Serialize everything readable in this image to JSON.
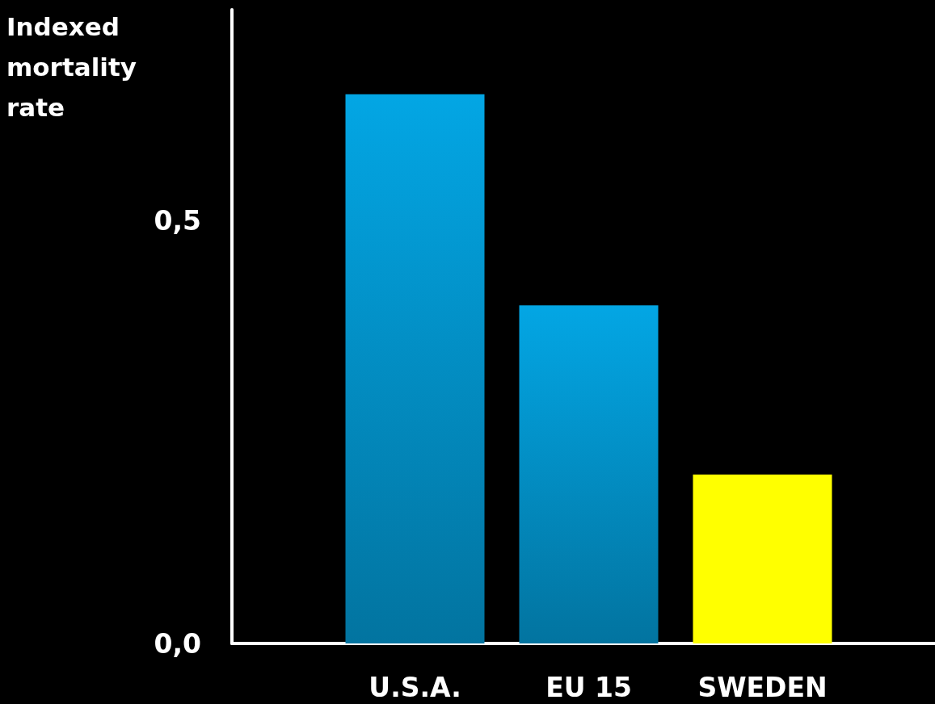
{
  "chart_data": {
    "type": "bar",
    "ylabel": "Indexed mortality rate",
    "categories": [
      "U.S.A.",
      "EU 15",
      "SWEDEN"
    ],
    "values": [
      0.65,
      0.4,
      0.2
    ],
    "colors": [
      "#03a6e4",
      "#03a6e4",
      "#ffff00"
    ],
    "ylim": [
      0,
      0.75
    ],
    "yticks": [
      {
        "value": 0,
        "label": "0,0"
      },
      {
        "value": 0.5,
        "label": "0,5"
      }
    ],
    "grid": false
  }
}
